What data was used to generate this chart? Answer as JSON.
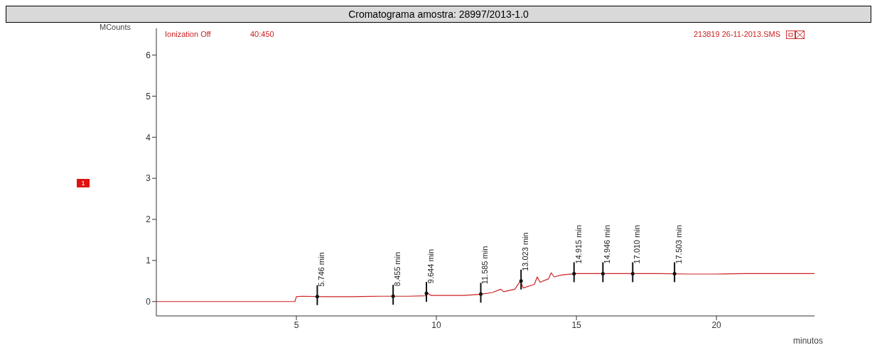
{
  "chart_data": {
    "type": "line",
    "title": "Cromatograma amostra: 28997/2013-1.0",
    "xlabel": "minutos",
    "ylabel": "MCounts",
    "x": [
      0,
      4.95,
      5.0,
      5.2,
      6,
      7,
      8,
      9,
      9.6,
      9.7,
      9.8,
      10.5,
      11,
      11.6,
      12,
      12.3,
      12.4,
      12.8,
      13.0,
      13.1,
      13.5,
      13.6,
      13.7,
      14,
      14.1,
      14.2,
      14.5,
      15,
      16,
      17,
      18,
      19,
      20,
      21,
      22,
      23.5
    ],
    "series": [
      {
        "color": "#cc2222",
        "values": [
          0,
          0,
          0.12,
          0.13,
          0.12,
          0.12,
          0.13,
          0.13,
          0.14,
          0.2,
          0.15,
          0.15,
          0.15,
          0.18,
          0.22,
          0.3,
          0.24,
          0.3,
          0.5,
          0.33,
          0.42,
          0.6,
          0.47,
          0.55,
          0.7,
          0.6,
          0.65,
          0.68,
          0.68,
          0.68,
          0.68,
          0.67,
          0.67,
          0.68,
          0.68,
          0.68
        ]
      }
    ],
    "xlim": [
      0,
      23.5
    ],
    "ylim": [
      -0.35,
      6.65
    ],
    "xticks": [
      5,
      10,
      15,
      20
    ],
    "yticks": [
      0,
      1,
      2,
      3,
      4,
      5,
      6
    ],
    "grid": false,
    "legend": false,
    "marker": "none",
    "line_style": "solid",
    "annotations": [
      "Ionization Off",
      "40:450",
      "213819 26-11-2013.SMS",
      "1",
      {
        "text": "5.746 min",
        "x": 5.746,
        "y": 0.12
      },
      {
        "text": "8.455 min",
        "x": 8.455,
        "y": 0.13
      },
      {
        "text": "9.644 min",
        "x": 9.644,
        "y": 0.2
      },
      {
        "text": "11.585 min",
        "x": 11.585,
        "y": 0.18
      },
      {
        "text": "13.023 min",
        "x": 13.023,
        "y": 0.5
      },
      {
        "text": "14.915 min",
        "x": 14.915,
        "y": 0.68
      },
      {
        "text": "14.946 min",
        "x": 15.946,
        "y": 0.68
      },
      {
        "text": "17.010 min",
        "x": 17.01,
        "y": 0.68
      },
      {
        "text": "17.503 min",
        "x": 18.503,
        "y": 0.68
      }
    ]
  }
}
